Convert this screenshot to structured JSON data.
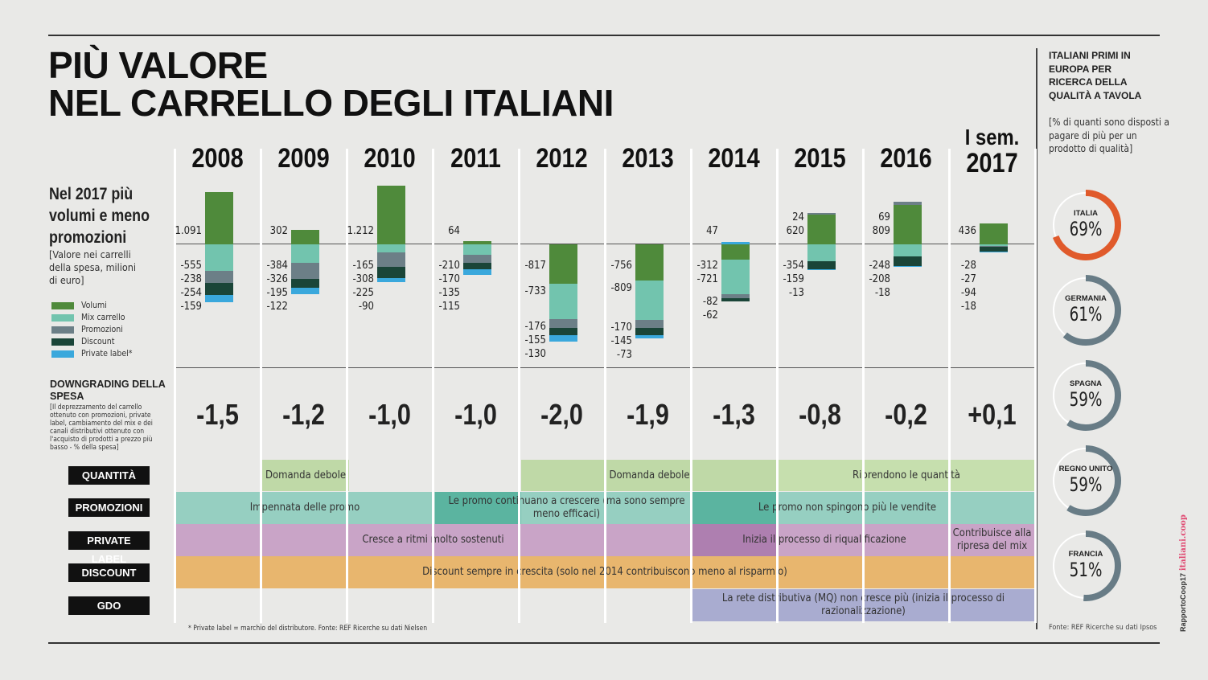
{
  "title_line1": "PIÙ VALORE",
  "title_line2": "NEL CARRELLO DEGLI ITALIANI",
  "subtitle": "Nel 2017 più volumi e meno promozioni",
  "subtitle_note": "[Valore nei carrelli della spesa, milioni di euro]",
  "colors": {
    "Volumi": "#4f8a3b",
    "Mix carrello": "#72c4ae",
    "Promozioni": "#6c7f87",
    "Discount": "#1a4538",
    "Private label*": "#3aa8dc",
    "accent": "#e05a2b",
    "donut": "#687c86"
  },
  "downgrading": {
    "title": "DOWNGRADING DELLA SPESA",
    "note": "[Il deprezzamento del carrello ottenuto con promozioni, private label, cambiamento del mix e dei canali distributivi ottenuto con l'acquisto di prodotti a prezzo più basso - % della spesa]",
    "values": [
      "-1,5",
      "-1,2",
      "-1,0",
      "-1,0",
      "-2,0",
      "-1,9",
      "-1,3",
      "-0,8",
      "-0,2",
      "+0,1"
    ]
  },
  "chart_data": {
    "type": "bar",
    "stacked": true,
    "title": "Valore nei carrelli della spesa",
    "ylabel": "milioni di euro",
    "categories": [
      "2008",
      "2009",
      "2010",
      "2011",
      "2012",
      "2013",
      "2014",
      "2015",
      "2016",
      "I sem. 2017"
    ],
    "legend": [
      "Volumi",
      "Mix carrello",
      "Promozioni",
      "Discount",
      "Private label*"
    ],
    "legend_position": "left",
    "series": [
      {
        "name": "Volumi",
        "values": [
          1091,
          302,
          1212,
          64,
          -817,
          -756,
          -312,
          620,
          809,
          436
        ]
      },
      {
        "name": "Mix carrello",
        "values": [
          -555,
          -384,
          -165,
          -210,
          -733,
          -809,
          -721,
          -354,
          -248,
          -28
        ]
      },
      {
        "name": "Promozioni",
        "values": [
          -238,
          -326,
          -308,
          -170,
          -176,
          -170,
          -82,
          24,
          69,
          -27
        ]
      },
      {
        "name": "Discount",
        "values": [
          -254,
          -195,
          -225,
          -135,
          -155,
          -145,
          -62,
          -159,
          -208,
          -94
        ]
      },
      {
        "name": "Private label*",
        "values": [
          -159,
          -122,
          -90,
          -115,
          -130,
          -73,
          47,
          -13,
          -18,
          -18
        ]
      }
    ]
  },
  "rows": {
    "quantita": "QUANTITÀ",
    "promozioni": "PROMOZIONI",
    "private_label": "PRIVATE LABEL",
    "discount": "DISCOUNT",
    "gdo": "GDO"
  },
  "bands": {
    "q1": "Domanda debole",
    "q2": "Domanda debole",
    "q3": "Riprendono le quantità",
    "p1": "Impennata delle promo",
    "p2": "Le promo continuano a crescere (ma sono sempre meno efficaci)",
    "p3": "Le promo non spingono più le vendite",
    "pl1": "Cresce a ritmi molto sostenuti",
    "pl2": "Inizia il processo di riqualificazione",
    "pl3": "Contribuisce alla ripresa del mix",
    "d1": "Discount sempre in crescita (solo nel 2014 contribuiscono meno al risparmio)",
    "g1": "La rete distributiva (MQ) non cresce più (inizia il processo di razionalizzazione)"
  },
  "footnote": "* Private label = marchio del distributore. Fonte: REF Ricerche su dati Nielsen",
  "side": {
    "title": "ITALIANI PRIMI IN EUROPA PER RICERCA DELLA QUALITÀ A TAVOLA",
    "note": "[% di quanti sono disposti a pagare di più per un prodotto di qualità]",
    "countries": [
      {
        "name": "ITALIA",
        "label": "69%",
        "value": 69
      },
      {
        "name": "GERMANIA",
        "label": "61%",
        "value": 61
      },
      {
        "name": "SPAGNA",
        "label": "59%",
        "value": 59
      },
      {
        "name": "REGNO UNITO",
        "label": "59%",
        "value": 59
      },
      {
        "name": "FRANCIA",
        "label": "51%",
        "value": 51
      }
    ],
    "source": "Fonte: REF Ricerche su dati Ipsos",
    "brand_prefix": "RapportoCoop17",
    "brand": "italiani.coop"
  }
}
